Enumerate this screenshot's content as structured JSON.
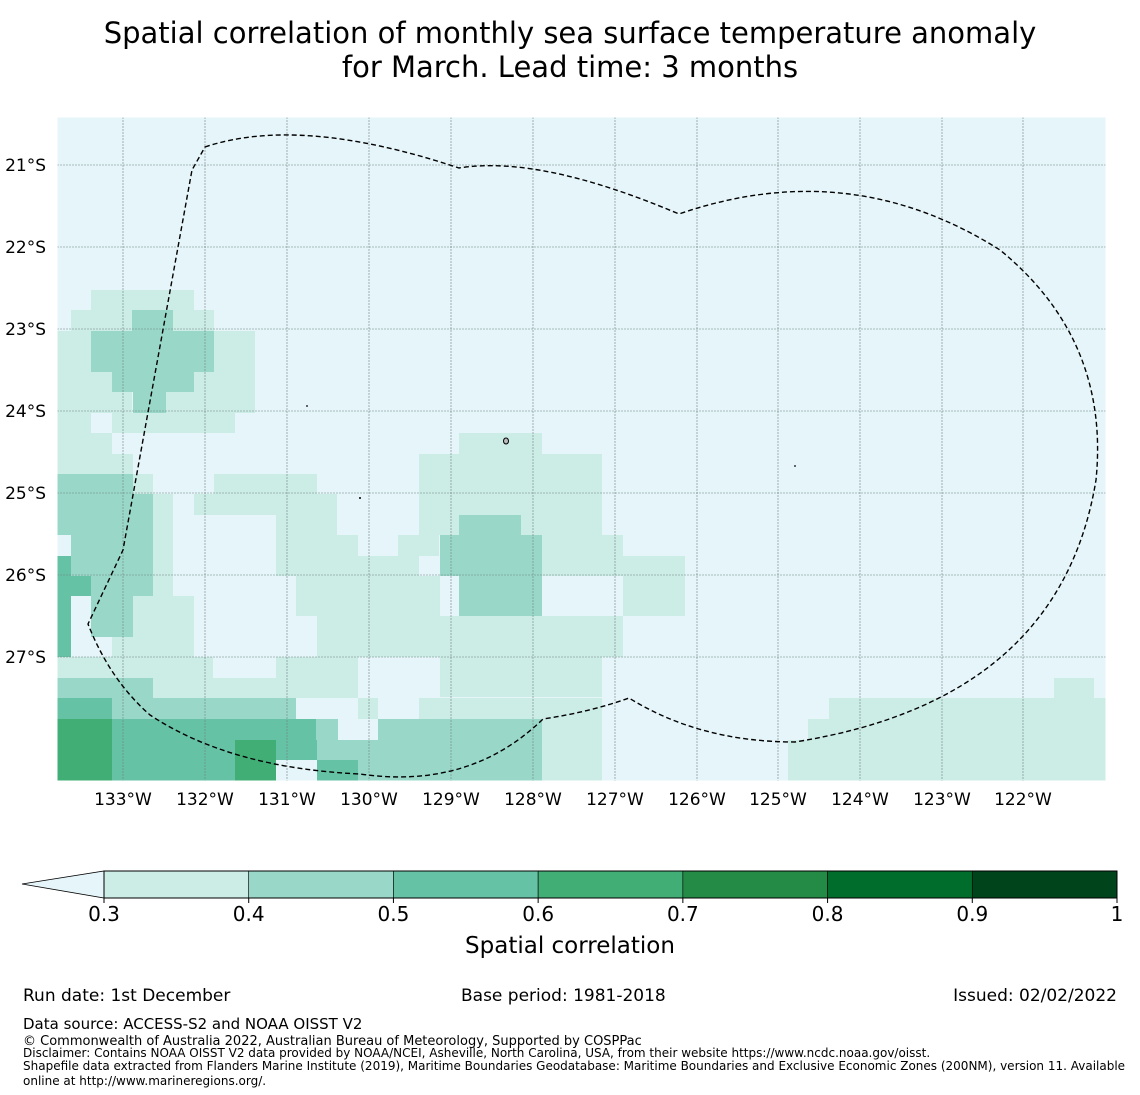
{
  "title": {
    "line1": "Spatial correlation of monthly sea surface temperature anomaly",
    "line2": "for March. Lead time: 3 months"
  },
  "map": {
    "lat_labels": [
      "21°S",
      "22°S",
      "23°S",
      "24°S",
      "25°S",
      "26°S",
      "27°S"
    ],
    "lon_labels": [
      "133°W",
      "132°W",
      "131°W",
      "130°W",
      "129°W",
      "128°W",
      "127°W",
      "126°W",
      "125°W",
      "124°W",
      "123°W",
      "122°W"
    ],
    "background_color": "#e5f5f9",
    "boundary_style": "dashed black"
  },
  "colorbar": {
    "ticks": [
      "0.3",
      "0.4",
      "0.5",
      "0.6",
      "0.7",
      "0.8",
      "0.9",
      "1"
    ],
    "label": "Spatial correlation",
    "colors": [
      "#ccece6",
      "#99d8c9",
      "#66c2a4",
      "#41ae76",
      "#238b45",
      "#006d2c",
      "#00441b"
    ],
    "under_color": "#e5f5f9"
  },
  "footer": {
    "run_date": "Run date: 1st December",
    "base_period": "Base period: 1981-2018",
    "issued": "Issued: 02/02/2022",
    "data_source": "Data source: ACCESS-S2 and NOAA OISST V2",
    "copyright": "© Commonwealth of Australia 2022, Australian Bureau of Meteorology, Supported by COSPPac",
    "disclaimer": "Disclaimer: Contains NOAA OISST V2 data provided by NOAA/NCEI, Asheville, North Carolina, USA, from their website https://www.ncdc.noaa.gov/oisst.",
    "shapefile_line1": "Shapefile data extracted from Flanders Marine Institute (2019), Maritime Boundaries Geodatabase: Maritime Boundaries and Exclusive Economic Zones (200NM), version 11. Available",
    "shapefile_line2": "online at http://www.marineregions.org/."
  }
}
